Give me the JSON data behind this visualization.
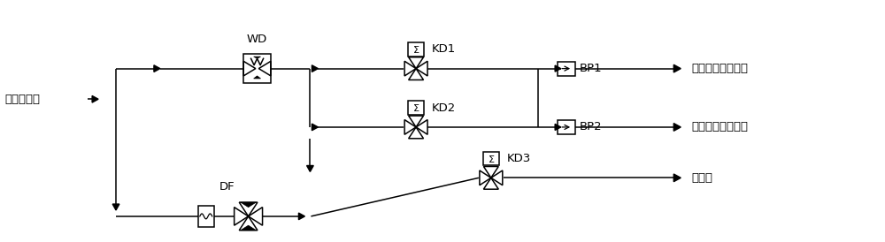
{
  "bg_color": "#ffffff",
  "line_color": "#000000",
  "fig_width": 10.0,
  "fig_height": 2.74,
  "dpi": 100,
  "labels": {
    "input": "气源输入端",
    "output1": "连接器锁紧输出端",
    "output2": "连接器脱落输出端",
    "output3": "放气端",
    "WD": "WD",
    "DF": "DF",
    "KD1": "KD1",
    "KD2": "KD2",
    "KD3": "KD3",
    "BP1": "BP1",
    "BP2": "BP2"
  },
  "font_size": 9.5,
  "font_family": "SimHei"
}
